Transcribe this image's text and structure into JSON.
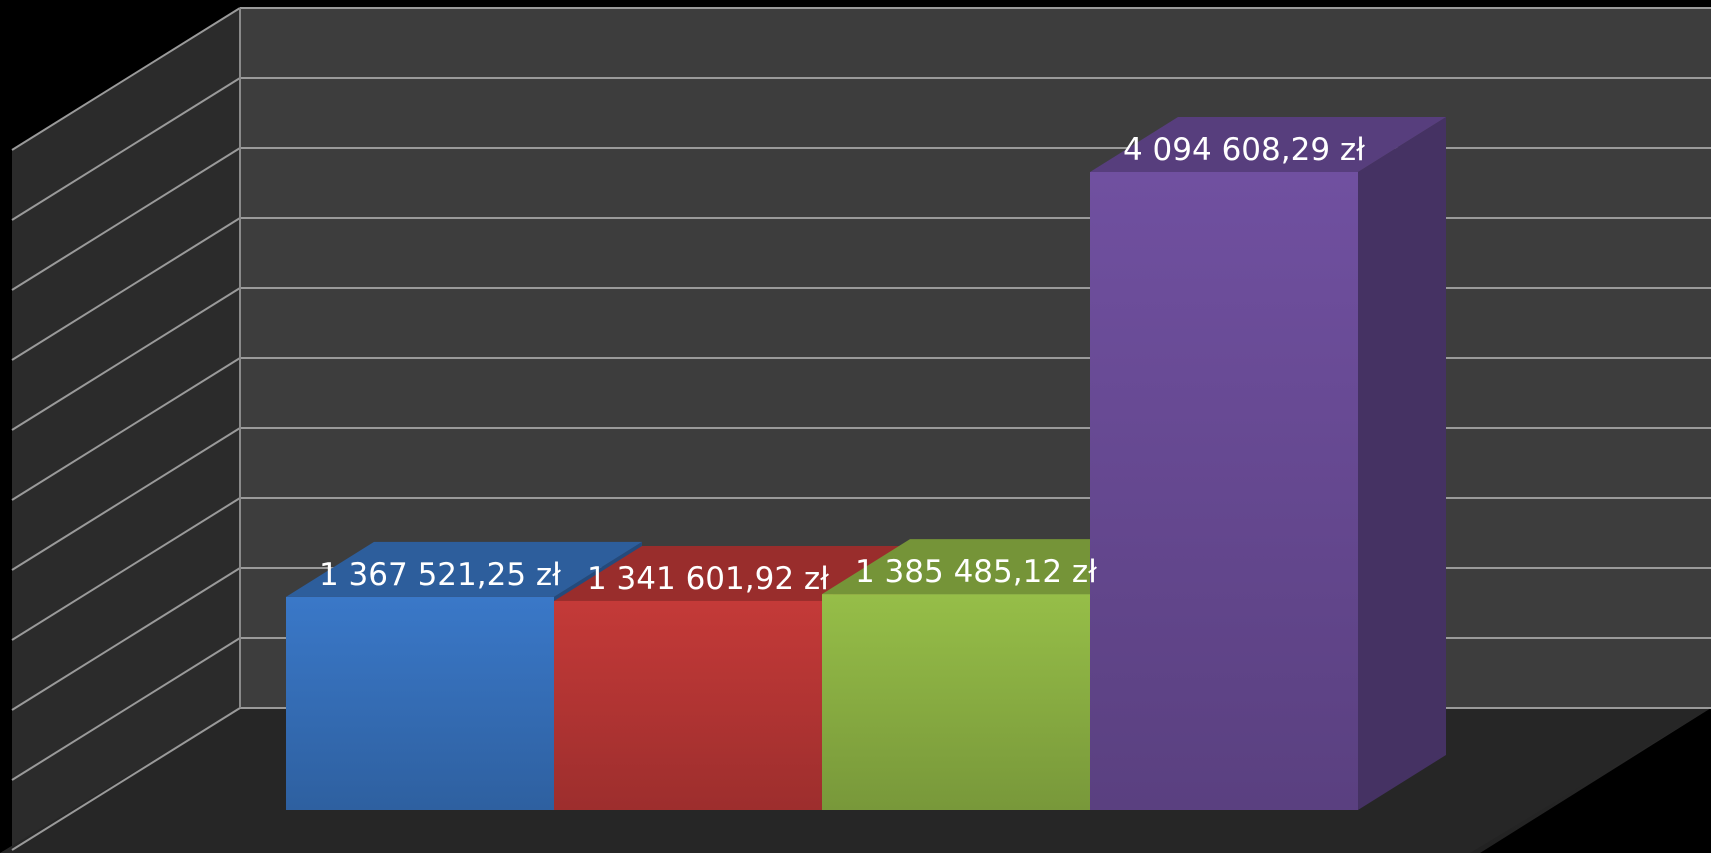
{
  "chart_data": {
    "type": "bar",
    "categories": [
      "",
      "",
      "",
      ""
    ],
    "values": [
      1367521.25,
      1341601.92,
      1385485.12,
      4094608.29
    ],
    "data_labels": [
      "1 367 521,25 zł",
      "1 341 601,92 zł",
      "1 385 485,12 zł",
      "4 094 608,29 zł"
    ],
    "colors": [
      "#3a78c8",
      "#c43a38",
      "#96be48",
      "#7050a0"
    ],
    "title": "",
    "xlabel": "",
    "ylabel": "",
    "ylim": [
      0,
      5000000
    ],
    "grid": true,
    "legend": "none",
    "style": "3d-column"
  }
}
